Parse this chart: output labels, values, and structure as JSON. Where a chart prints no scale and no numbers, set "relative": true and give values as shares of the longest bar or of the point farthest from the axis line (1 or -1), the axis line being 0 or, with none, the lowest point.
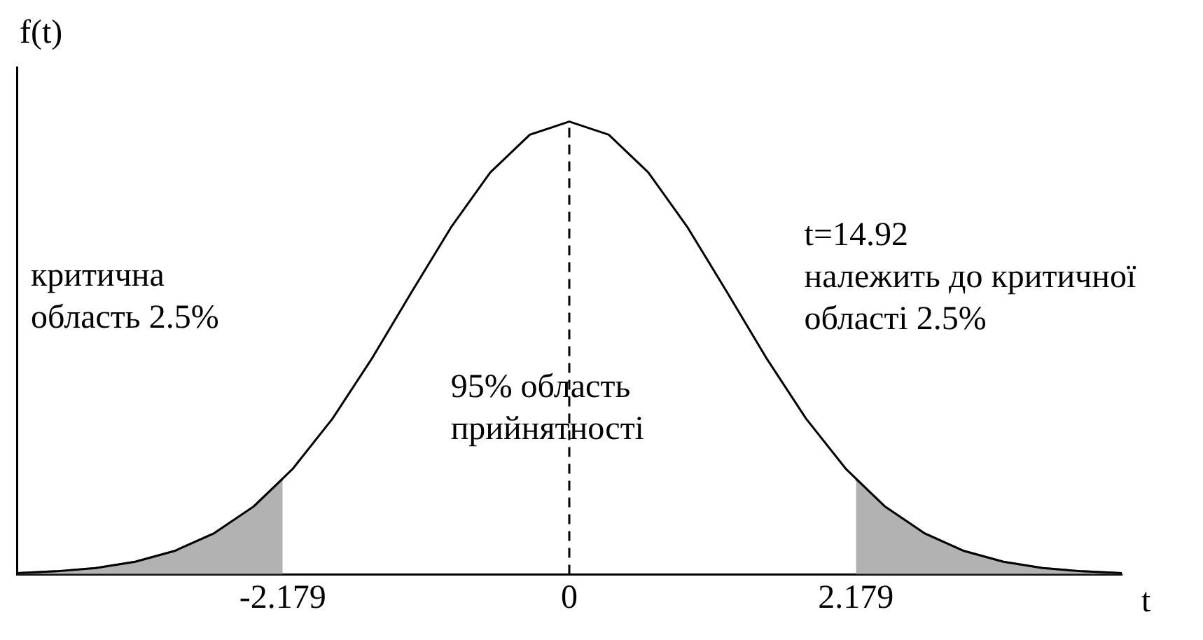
{
  "chart_data": {
    "type": "line",
    "relative": true,
    "xlabel": "t",
    "ylabel": "f(t)",
    "xlim": [
      -4.2,
      4.2
    ],
    "xticks": [
      -2.179,
      0,
      2.179
    ],
    "grid": false,
    "legend": false,
    "marker": "none",
    "ref_lines": [
      {
        "axis": "x",
        "value": 0,
        "line_style": "dashed",
        "color": "#000000"
      }
    ],
    "annotations": [
      "критична\nобласть 2.5%",
      "95% область\nприйнятності",
      "t=14.92\nналежить до критичної\nобласті 2.5%"
    ],
    "series": [
      {
        "type": "line",
        "color": "#000000",
        "line_style": "solid",
        "x": [
          -4.2,
          -3.9,
          -3.6,
          -3.3,
          -3.0,
          -2.7,
          -2.4,
          -2.1,
          -1.8,
          -1.5,
          -1.2,
          -0.9,
          -0.6,
          -0.3,
          0,
          0.3,
          0.6,
          0.9,
          1.2,
          1.5,
          1.8,
          2.1,
          2.4,
          2.7,
          3.0,
          3.3,
          3.6,
          3.9,
          4.2
        ],
        "values": [
          0.003,
          0.007,
          0.014,
          0.028,
          0.052,
          0.091,
          0.15,
          0.234,
          0.344,
          0.477,
          0.623,
          0.766,
          0.888,
          0.971,
          1,
          0.971,
          0.888,
          0.766,
          0.623,
          0.477,
          0.344,
          0.234,
          0.15,
          0.091,
          0.052,
          0.028,
          0.014,
          0.007,
          0.003
        ]
      },
      {
        "type": "area",
        "color": "#8c8c8c",
        "x": [
          -4.2,
          -3.9,
          -3.6,
          -3.3,
          -3.0,
          -2.7,
          -2.4,
          -2.179
        ],
        "values": [
          0.003,
          0.007,
          0.014,
          0.028,
          0.052,
          0.091,
          0.15,
          0.21
        ]
      },
      {
        "type": "area",
        "color": "#8c8c8c",
        "x": [
          2.179,
          2.4,
          2.7,
          3.0,
          3.3,
          3.6,
          3.9,
          4.2
        ],
        "values": [
          0.21,
          0.15,
          0.091,
          0.052,
          0.028,
          0.014,
          0.007,
          0.003
        ]
      }
    ]
  }
}
